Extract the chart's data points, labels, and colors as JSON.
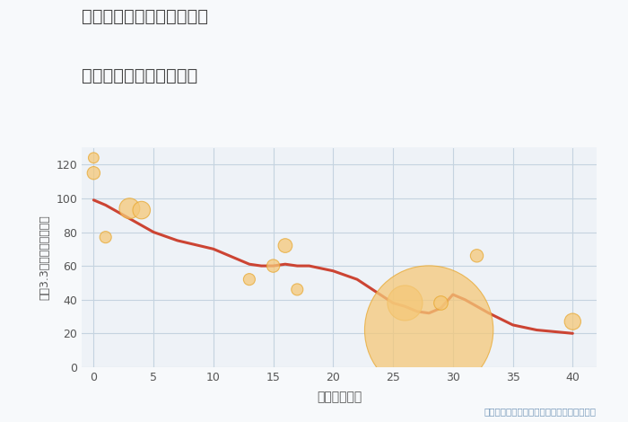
{
  "title_line1": "兵庫県明石市西明石西町の",
  "title_line2": "築年数別中古戸建て価格",
  "xlabel": "築年数（年）",
  "ylabel": "坪（3.3㎡）単価（万円）",
  "bg_color": "#f7f9fb",
  "plot_bg_color": "#eef2f7",
  "line_color": "#cc4433",
  "line_width": 2.2,
  "grid_color": "#c5d3e0",
  "title_color": "#444444",
  "axis_label_color": "#555555",
  "annotation_color": "#7799bb",
  "annotation_text": "円の大きさは、取引のあった物件面積を示す",
  "xlim": [
    -1,
    42
  ],
  "ylim": [
    0,
    130
  ],
  "xticks": [
    0,
    5,
    10,
    15,
    20,
    25,
    30,
    35,
    40
  ],
  "yticks": [
    0,
    20,
    40,
    60,
    80,
    100,
    120
  ],
  "line_x": [
    0,
    1,
    2,
    3,
    4,
    5,
    7,
    10,
    13,
    14,
    15,
    16,
    17,
    18,
    20,
    22,
    25,
    26,
    27,
    28,
    29,
    30,
    31,
    33,
    35,
    37,
    40
  ],
  "line_y": [
    99,
    96,
    92,
    88,
    84,
    80,
    75,
    70,
    61,
    60,
    60,
    61,
    60,
    60,
    57,
    52,
    38,
    36,
    33,
    32,
    35,
    43,
    40,
    32,
    25,
    22,
    20
  ],
  "bubble_x": [
    0,
    0,
    1,
    3,
    4,
    13,
    15,
    16,
    17,
    26,
    28,
    29,
    32,
    40
  ],
  "bubble_y": [
    115,
    124,
    77,
    94,
    93,
    52,
    60,
    72,
    46,
    38,
    22,
    38,
    66,
    27
  ],
  "bubble_size": [
    22,
    18,
    20,
    35,
    30,
    20,
    22,
    24,
    20,
    60,
    220,
    24,
    22,
    28
  ],
  "bubble_color": "#f5c878",
  "bubble_alpha": 0.75,
  "bubble_edge_color": "#e8a830",
  "bubble_edge_width": 0.8
}
